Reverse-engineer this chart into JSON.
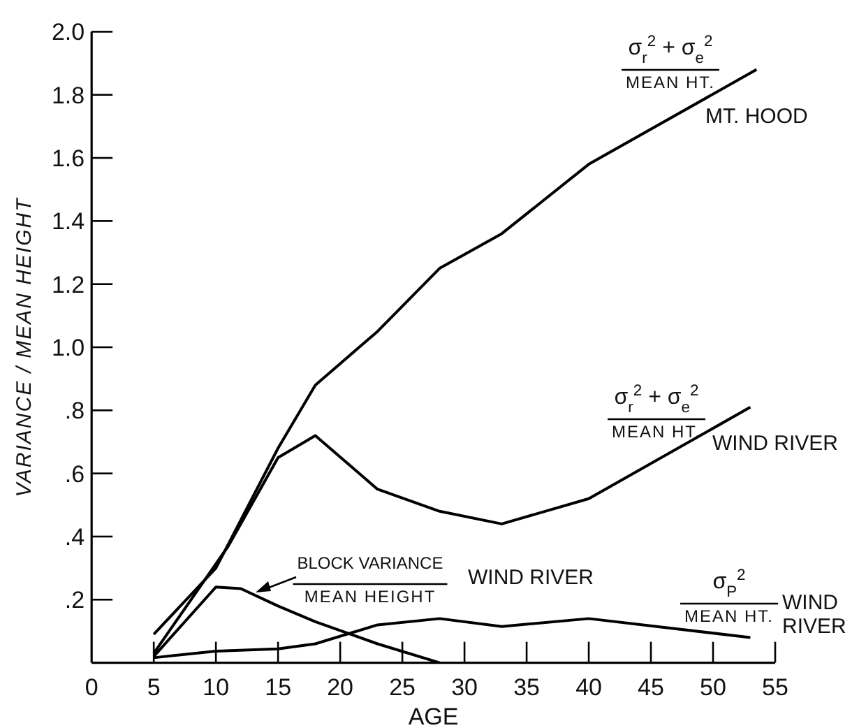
{
  "chart_data": {
    "type": "line",
    "xlabel": "AGE",
    "ylabel": "VARIANCE / MEAN HEIGHT",
    "xlim": [
      0,
      55
    ],
    "ylim": [
      0,
      2.0
    ],
    "xticks": [
      0,
      5,
      10,
      15,
      20,
      25,
      30,
      35,
      40,
      45,
      50,
      55
    ],
    "yticks": [
      {
        "value": 0.2,
        "label": ".2"
      },
      {
        "value": 0.4,
        "label": ".4"
      },
      {
        "value": 0.6,
        "label": ".6"
      },
      {
        "value": 0.8,
        "label": ".8"
      },
      {
        "value": 1.0,
        "label": "1.0"
      },
      {
        "value": 1.2,
        "label": "1.2"
      },
      {
        "value": 1.4,
        "label": "1.4"
      },
      {
        "value": 1.6,
        "label": "1.6"
      },
      {
        "value": 1.8,
        "label": "1.8"
      },
      {
        "value": 2.0,
        "label": "2.0"
      }
    ],
    "grid": false,
    "marker": "none",
    "line_style": "solid",
    "series": [
      {
        "name": "σ$_{r}$$^{2}$ + σ$_{e}$$^{2}$\nMEAN HT.\nMT. HOOD",
        "color": "#000000",
        "x": [
          5,
          10,
          15,
          18,
          23,
          28,
          33,
          40,
          53.5
        ],
        "values": [
          0.09,
          0.3,
          0.68,
          0.88,
          1.05,
          1.25,
          1.36,
          1.58,
          1.88
        ]
      },
      {
        "name": "σ$_{r}$$^{2}$ + σ$_{e}$$^{2}$\nMEAN HT.\nWIND RIVER",
        "color": "#000000",
        "x": [
          5,
          11,
          15,
          18,
          23,
          28,
          33,
          40,
          53
        ],
        "values": [
          0.03,
          0.37,
          0.65,
          0.72,
          0.55,
          0.48,
          0.44,
          0.52,
          0.81
        ]
      },
      {
        "name": "BLOCK VARIANCE\nMEAN HEIGHT\nWIND RIVER",
        "color": "#000000",
        "x": [
          5,
          10,
          12,
          15,
          18,
          23,
          28
        ],
        "values": [
          0.02,
          0.24,
          0.235,
          0.18,
          0.13,
          0.06,
          0.0
        ]
      },
      {
        "name": "σ$_{P}$$^{2}$\nMEAN HT.\nWIND\nRIVER",
        "color": "#000000",
        "x": [
          5,
          10,
          15,
          18,
          23,
          28,
          33,
          40,
          53
        ],
        "values": [
          0.016,
          0.037,
          0.044,
          0.06,
          0.12,
          0.14,
          0.115,
          0.14,
          0.08
        ]
      }
    ]
  }
}
